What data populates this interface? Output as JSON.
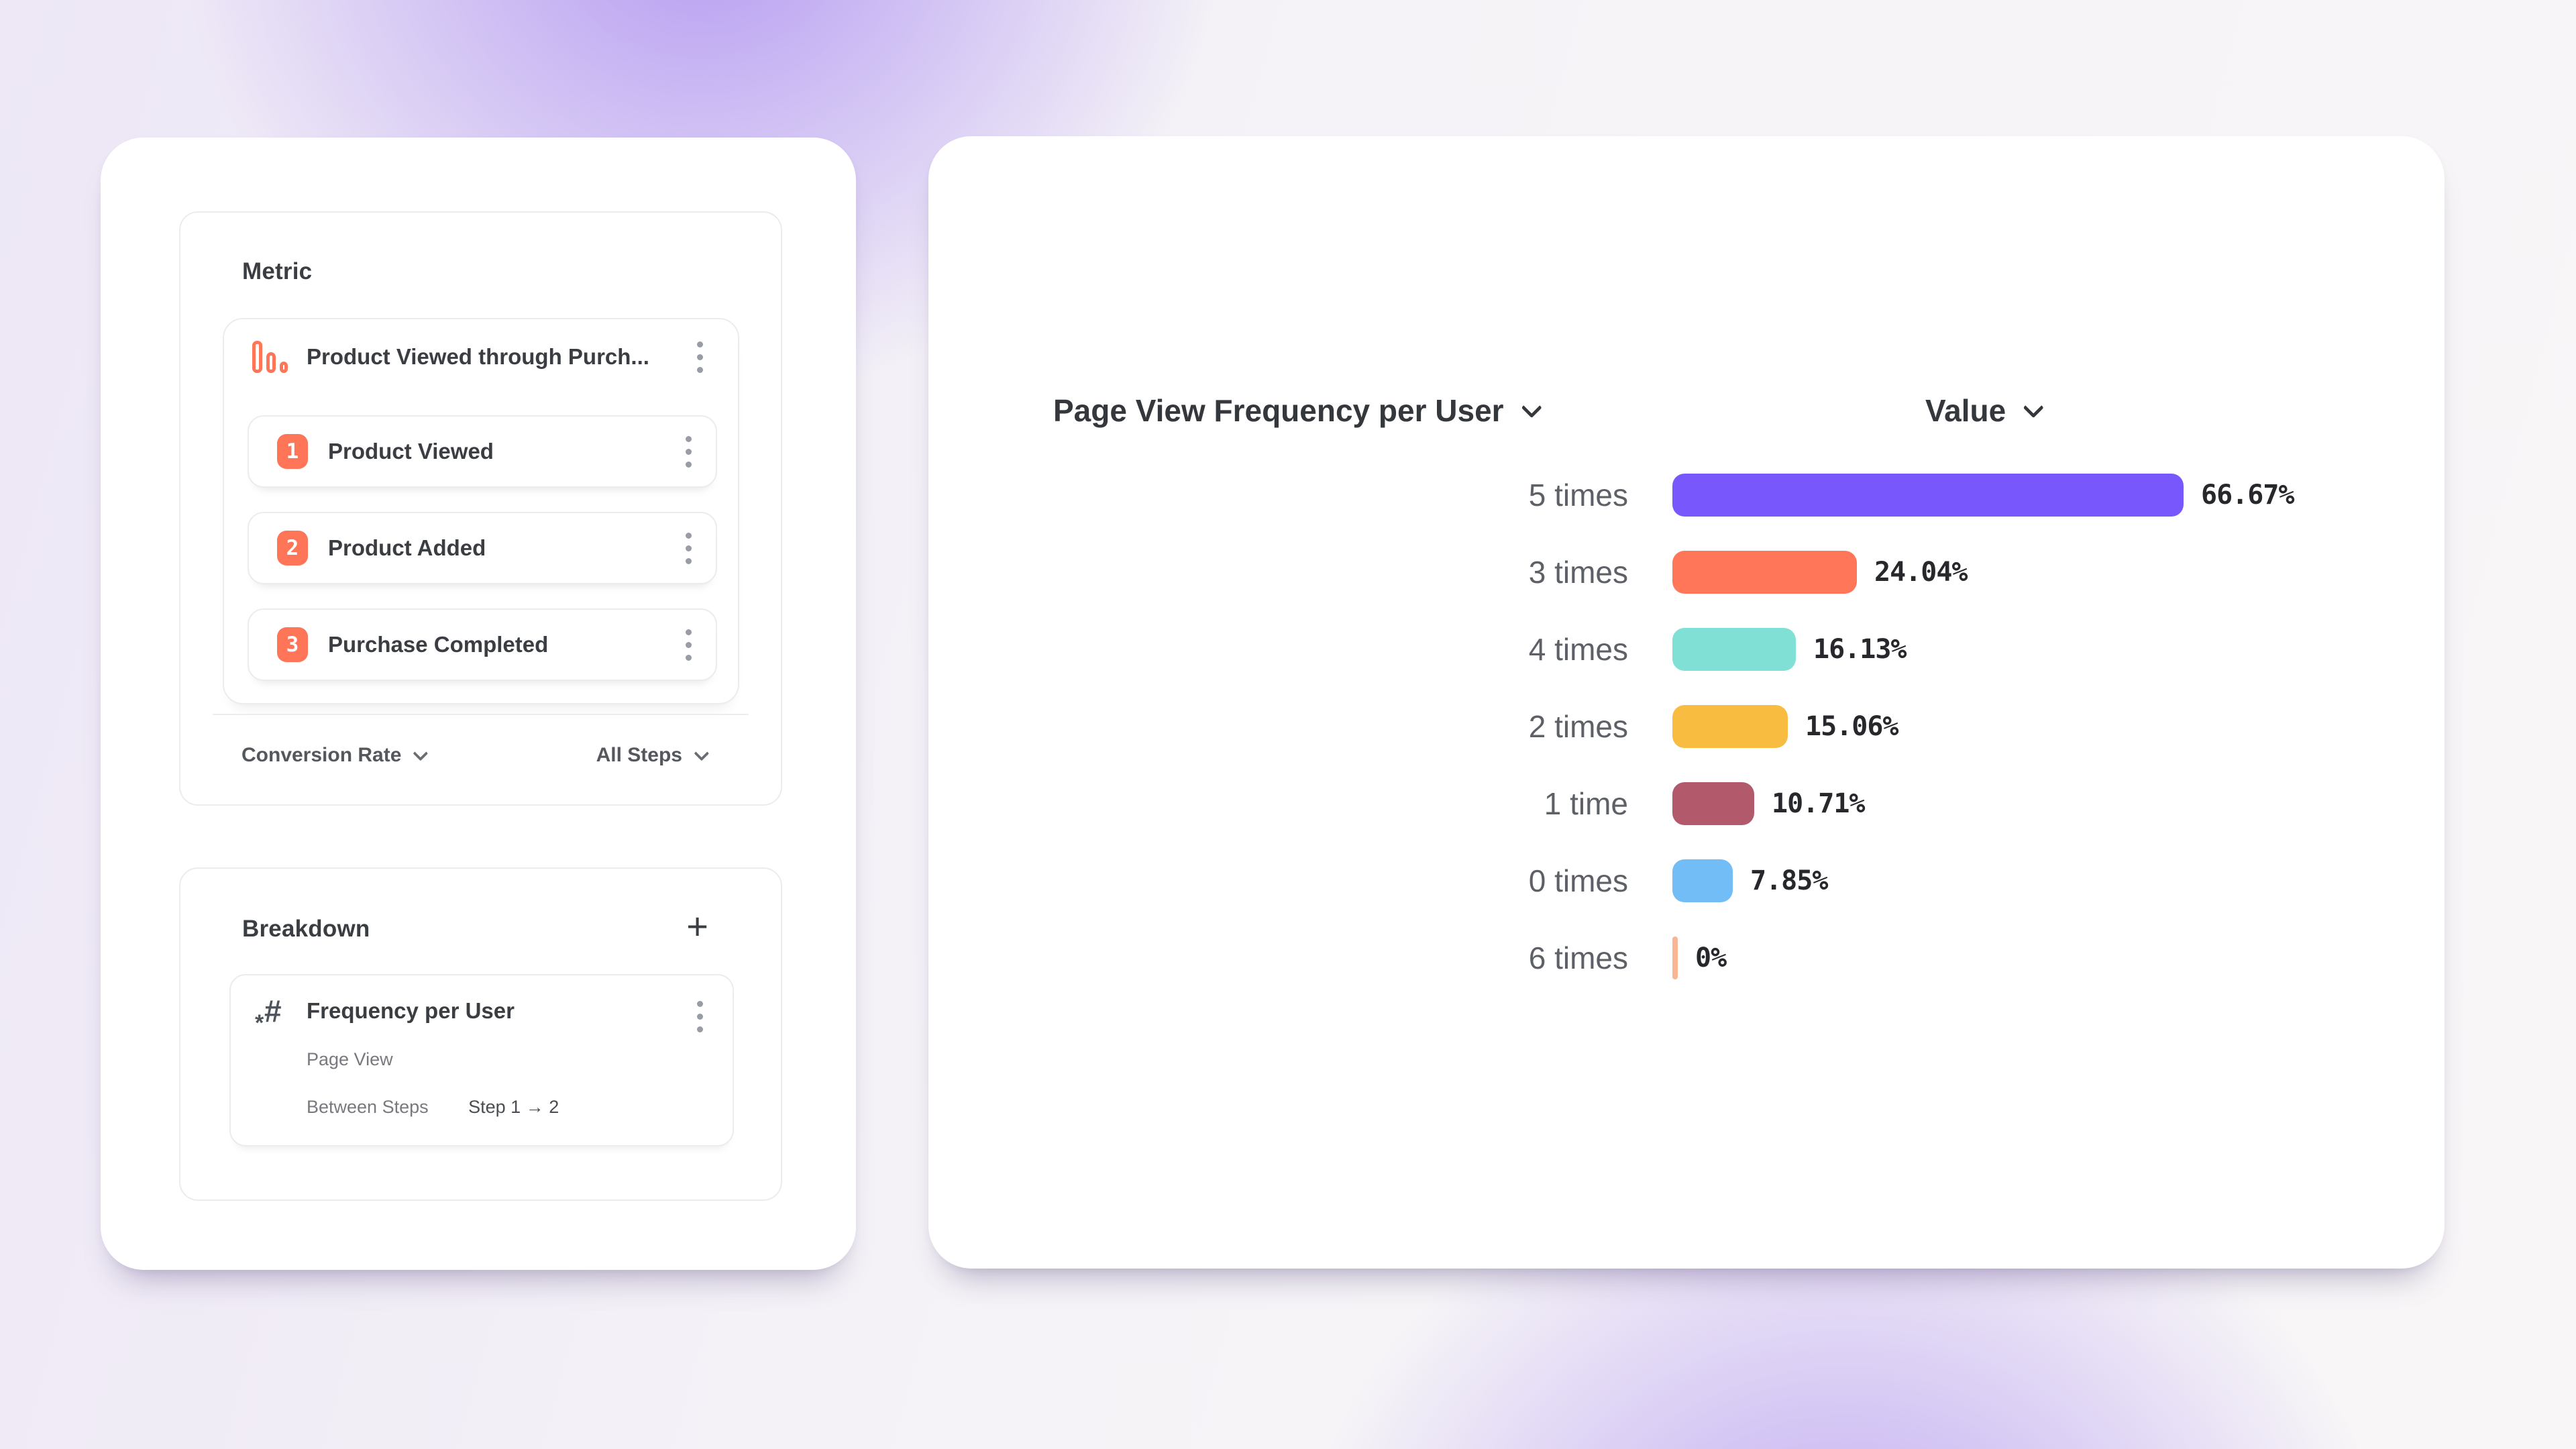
{
  "metric_panel": {
    "title": "Metric",
    "funnel": {
      "title": "Product Viewed through Purch...",
      "icon": "funnel-bars-icon",
      "steps": [
        {
          "number": "1",
          "label": "Product Viewed"
        },
        {
          "number": "2",
          "label": "Product Added"
        },
        {
          "number": "3",
          "label": "Purchase Completed"
        }
      ]
    },
    "footer": {
      "measurement": "Conversion Rate",
      "steps_scope": "All Steps"
    }
  },
  "breakdown_panel": {
    "title": "Breakdown",
    "add_label": "+",
    "item": {
      "title": "Frequency per User",
      "event": "Page View",
      "between_steps_label": "Between Steps",
      "between_steps_value": "Step 1 → 2"
    }
  },
  "chart_data": {
    "type": "bar",
    "orientation": "horizontal",
    "title": "Page View Frequency per User",
    "value_header": "Value",
    "categories": [
      "5 times",
      "3 times",
      "4 times",
      "2 times",
      "1 time",
      "0 times",
      "6 times"
    ],
    "values": [
      66.67,
      24.04,
      16.13,
      15.06,
      10.71,
      7.85,
      0
    ],
    "value_labels": [
      "66.67%",
      "24.04%",
      "16.13%",
      "15.06%",
      "10.71%",
      "7.85%",
      "0%"
    ],
    "colors": [
      "#7857FD",
      "#FF7659",
      "#80E0D6",
      "#F8BC41",
      "#B25A6C",
      "#73BDF6",
      "#F9B692"
    ],
    "xlim": [
      0,
      66.67
    ],
    "legend": "none",
    "grid": "off"
  }
}
